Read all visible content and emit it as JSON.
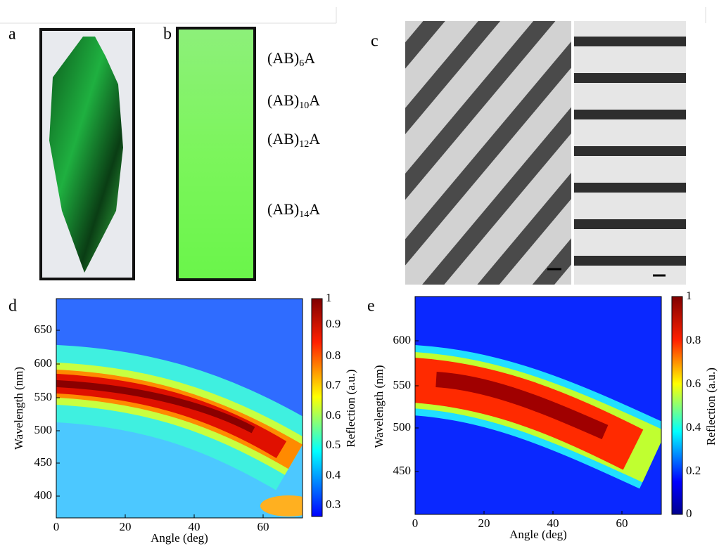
{
  "panels": {
    "a": {
      "label": "a"
    },
    "b": {
      "label": "b",
      "layers": [
        {
          "base": "(AB)",
          "sub": "6",
          "end": "A"
        },
        {
          "base": "(AB)",
          "sub": "10",
          "end": "A"
        },
        {
          "base": "(AB)",
          "sub": "12",
          "end": "A"
        },
        {
          "base": "(AB)",
          "sub": "14",
          "end": "A"
        }
      ]
    },
    "c": {
      "label": "c"
    },
    "d": {
      "label": "d",
      "y_label": "Wavelength (nm)",
      "x_label": "Angle (deg)",
      "colorbar_label": "Reflection (a.u.)",
      "yticks": [
        650,
        600,
        550,
        500,
        450,
        400
      ],
      "xticks": [
        0,
        20,
        40,
        60
      ],
      "cticks": [
        1,
        0.9,
        0.8,
        0.7,
        0.6,
        0.5,
        0.4,
        0.3
      ]
    },
    "e": {
      "label": "e",
      "y_label": "Wavelength (nm)",
      "x_label": "Angle (deg)",
      "colorbar_label": "Reflection (a.u.)",
      "yticks": [
        600,
        550,
        500,
        450
      ],
      "xticks": [
        0,
        20,
        40,
        60
      ],
      "cticks": [
        1,
        0.8,
        0.6,
        0.4,
        0.2,
        0
      ]
    }
  }
}
